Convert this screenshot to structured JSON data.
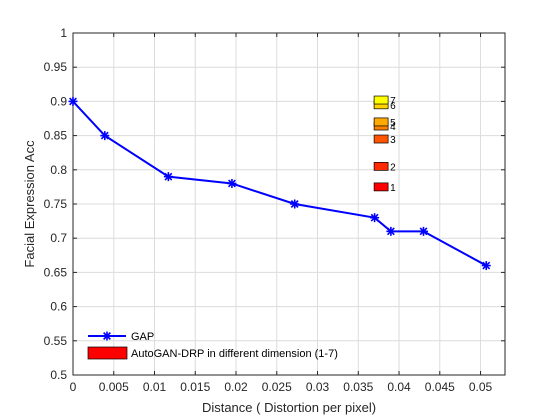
{
  "chart_data": {
    "type": "line",
    "title": "",
    "xlabel": "Distance  ( Distortion per pixel)",
    "ylabel": "Facial Expression Acc",
    "xlim": [
      0,
      0.053
    ],
    "ylim": [
      0.5,
      1
    ],
    "xticks": [
      0,
      0.005,
      0.01,
      0.015,
      0.02,
      0.025,
      0.03,
      0.035,
      0.04,
      0.045,
      0.05
    ],
    "xtick_labels": [
      "0",
      "0.005",
      "0.01",
      "0.015",
      "0.02",
      "0.025",
      "0.03",
      "0.035",
      "0.04",
      "0.045",
      "0.05"
    ],
    "yticks": [
      0.5,
      0.55,
      0.6,
      0.65,
      0.7,
      0.75,
      0.8,
      0.85,
      0.9,
      0.95,
      1
    ],
    "ytick_labels": [
      "0.5",
      "0.55",
      "0.6",
      "0.65",
      "0.7",
      "0.75",
      "0.8",
      "0.85",
      "0.9",
      "0.95",
      "1"
    ],
    "grid": true,
    "legend_position": "bottom-left",
    "series": [
      {
        "name": "GAP",
        "type": "line",
        "marker": "asterisk",
        "color": "#0000ff",
        "x": [
          0,
          0.0039,
          0.0117,
          0.0195,
          0.0272,
          0.037,
          0.039,
          0.043,
          0.0507
        ],
        "y": [
          0.9,
          0.85,
          0.79,
          0.78,
          0.75,
          0.73,
          0.71,
          0.71,
          0.66
        ]
      },
      {
        "name": "AutoGAN-DRP in different dimension (1-7)",
        "type": "bar-markers",
        "points": [
          {
            "label": "1",
            "x": 0.0378,
            "y": 0.775,
            "color": "#ff0000"
          },
          {
            "label": "2",
            "x": 0.0378,
            "y": 0.805,
            "color": "#ff2a00"
          },
          {
            "label": "3",
            "x": 0.0378,
            "y": 0.845,
            "color": "#ff5500"
          },
          {
            "label": "4",
            "x": 0.0378,
            "y": 0.864,
            "color": "#ff7f00"
          },
          {
            "label": "5",
            "x": 0.0378,
            "y": 0.87,
            "color": "#ffaa00"
          },
          {
            "label": "6",
            "x": 0.0378,
            "y": 0.895,
            "color": "#ffd400"
          },
          {
            "label": "7",
            "x": 0.0378,
            "y": 0.902,
            "color": "#ffff00"
          }
        ]
      }
    ]
  }
}
